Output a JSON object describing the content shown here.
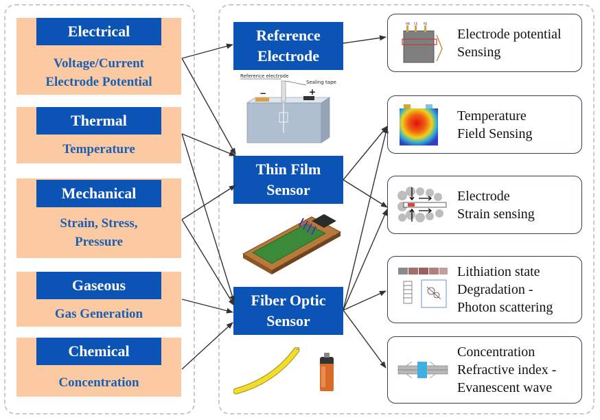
{
  "categories": [
    {
      "title": "Electrical",
      "desc": [
        "Voltage/Current",
        "Electrode Potential"
      ]
    },
    {
      "title": "Thermal",
      "desc": [
        "Temperature"
      ]
    },
    {
      "title": "Mechanical",
      "desc": [
        "Strain, Stress,",
        "Pressure"
      ]
    },
    {
      "title": "Gaseous",
      "desc": [
        "Gas Generation"
      ]
    },
    {
      "title": "Chemical",
      "desc": [
        "Concentration"
      ]
    }
  ],
  "sensors": [
    {
      "lines": [
        "Reference",
        "Electrode"
      ]
    },
    {
      "lines": [
        "Thin Film",
        "Sensor"
      ]
    },
    {
      "lines": [
        "Fiber Optic",
        "Sensor"
      ]
    }
  ],
  "applications": [
    {
      "lines": [
        "Electrode potential",
        "Sensing"
      ]
    },
    {
      "lines": [
        "Temperature",
        "Field Sensing"
      ]
    },
    {
      "lines": [
        "Electrode",
        "Strain sensing"
      ]
    },
    {
      "lines": [
        "Lithiation state",
        "Degradation -",
        "Photon scattering"
      ]
    },
    {
      "lines": [
        "Concentration",
        "Refractive index -",
        "Evanescent wave"
      ]
    }
  ],
  "illustrations": {
    "reference_electrode_label": "Reference electrode",
    "sealing_tape_label": "Sealing tape",
    "minus_sign": "−",
    "plus_sign": "+",
    "electrode_labels": [
      "WE",
      "CE",
      "RE"
    ]
  },
  "colors": {
    "category_box": "#fbc9a2",
    "title_box": "#0b54b5",
    "desc_text": "#1b5fb0",
    "arrow": "#333333"
  }
}
